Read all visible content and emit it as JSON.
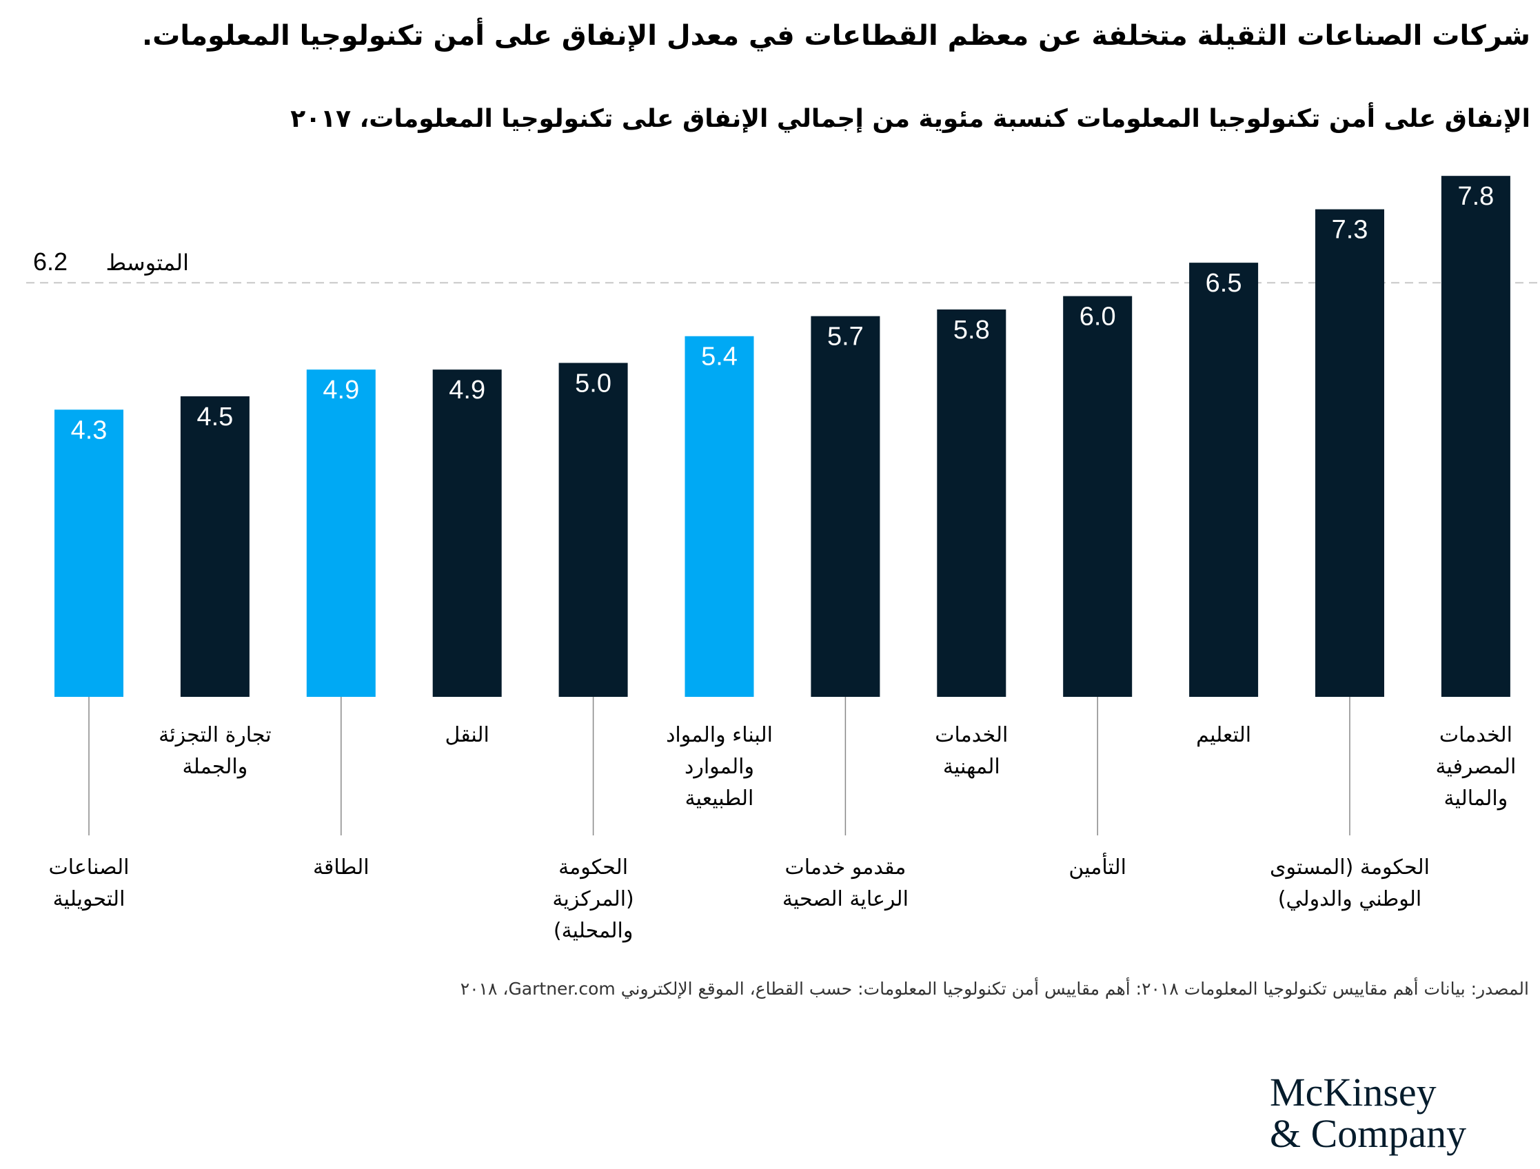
{
  "header": {
    "title": "شركات الصناعات الثقيلة متخلفة عن معظم القطاعات في معدل الإنفاق على أمن تكنولوجيا المعلومات.",
    "subtitle": "الإنفاق على أمن تكنولوجيا المعلومات كنسبة مئوية من إجمالي الإنفاق على تكنولوجيا المعلومات، ٢٠١٧"
  },
  "colors": {
    "highlight": "#00A9F4",
    "default": "#051C2C",
    "average_line": "#C8C8C8",
    "leader_line": "#888888"
  },
  "chart_data": {
    "type": "bar",
    "title": "الإنفاق على أمن تكنولوجيا المعلومات كنسبة مئوية من إجمالي الإنفاق على تكنولوجيا المعلومات، ٢٠١٧",
    "xlabel": "",
    "ylabel": "",
    "ylim": [
      0,
      7.8
    ],
    "grid": false,
    "legend": "none",
    "average": {
      "label": "المتوسط",
      "value": 6.2,
      "value_text": "6.2"
    },
    "categories": [
      "الصناعات التحويلية",
      "تجارة التجزئة والجملة",
      "الطاقة",
      "النقل",
      "الحكومة (المركزية والمحلية)",
      "البناء والمواد والموارد الطبيعية",
      "مقدمو خدمات الرعاية الصحية",
      "الخدمات المهنية",
      "التأمين",
      "التعليم",
      "الحكومة (المستوى الوطني والدولي)",
      "الخدمات المصرفية والمالية"
    ],
    "category_lines": [
      [
        "الصناعات",
        "التحويلية"
      ],
      [
        "تجارة التجزئة",
        "والجملة"
      ],
      [
        "الطاقة"
      ],
      [
        "النقل"
      ],
      [
        "الحكومة",
        "(المركزية",
        "والمحلية)"
      ],
      [
        "البناء والمواد",
        "والموارد",
        "الطبيعية"
      ],
      [
        "مقدمو خدمات",
        "الرعاية الصحية"
      ],
      [
        "الخدمات",
        "المهنية"
      ],
      [
        "التأمين"
      ],
      [
        "التعليم"
      ],
      [
        "الحكومة (المستوى",
        "الوطني والدولي)"
      ],
      [
        "الخدمات",
        "المصرفية",
        "والمالية"
      ]
    ],
    "label_position": [
      "low",
      "high",
      "low",
      "high",
      "low",
      "high",
      "low",
      "high",
      "low",
      "high",
      "low",
      "high"
    ],
    "values": [
      4.3,
      4.5,
      4.9,
      4.9,
      5.0,
      5.4,
      5.7,
      5.8,
      6.0,
      6.5,
      7.3,
      7.8
    ],
    "value_labels": [
      "4.3",
      "4.5",
      "4.9",
      "4.9",
      "5.0",
      "5.4",
      "5.7",
      "5.8",
      "6.0",
      "6.5",
      "7.3",
      "7.8"
    ],
    "highlighted": [
      true,
      false,
      true,
      false,
      false,
      true,
      false,
      false,
      false,
      false,
      false,
      false
    ]
  },
  "footer": {
    "source": "المصدر: بيانات أهم مقاييس تكنولوجيا المعلومات ٢٠١٨: أهم مقاييس أمن تكنولوجيا المعلومات: حسب القطاع، الموقع الإلكتروني Gartner.com، ٢٠١٨",
    "logo_line1": "McKinsey",
    "logo_line2": "& Company"
  }
}
